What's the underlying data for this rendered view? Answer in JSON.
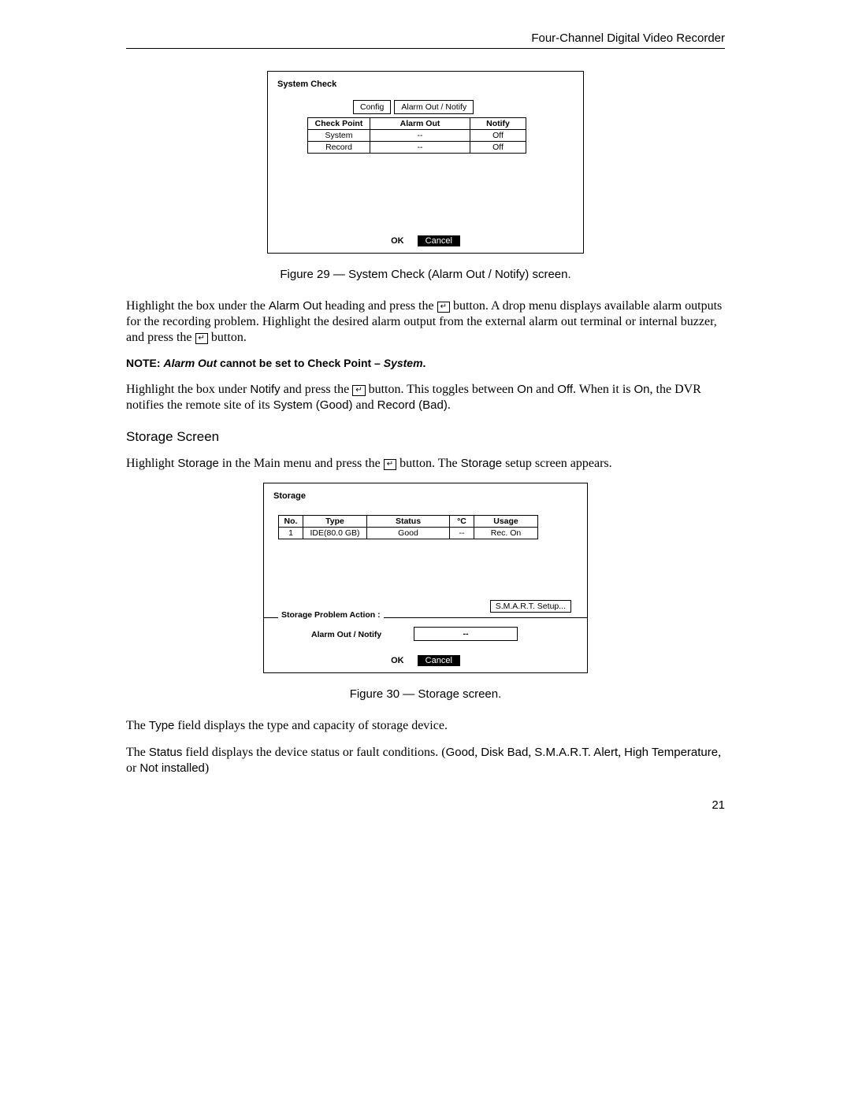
{
  "header": {
    "title": "Four-Channel Digital Video Recorder"
  },
  "systemCheckDialog": {
    "title": "System Check",
    "tabs": {
      "config": "Config",
      "alarm": "Alarm Out / Notify"
    },
    "headers": {
      "checkPoint": "Check Point",
      "alarmOut": "Alarm Out",
      "notify": "Notify"
    },
    "rows": [
      {
        "checkPoint": "System",
        "alarmOut": "--",
        "notify": "Off"
      },
      {
        "checkPoint": "Record",
        "alarmOut": "--",
        "notify": "Off"
      }
    ],
    "ok": "OK",
    "cancel": "Cancel"
  },
  "fig29": "Figure 29 — System Check (Alarm Out / Notify) screen.",
  "para1": {
    "t1": "Highlight the box under the ",
    "s1": "Alarm Out",
    "t2": " heading and press the ",
    "icon": "↵",
    "t3": " button.  A drop menu displays available alarm outputs for the recording problem.  Highlight the desired alarm output from the external alarm out terminal or internal buzzer, and press the ",
    "t4": " button."
  },
  "note": {
    "label": "NOTE:  ",
    "i1": "Alarm Out",
    "t1": " cannot be set to Check Point – ",
    "i2": "System",
    "t2": "."
  },
  "para2": {
    "t1": "Highlight the box under ",
    "s1": "Notify",
    "t2": " and press the ",
    "icon": "↵",
    "t3": " button.  This toggles between ",
    "s2": "On",
    "t4": " and ",
    "s3": "Off",
    "t5": ".  When it is ",
    "s4": "On",
    "t6": ", the DVR notifies the remote site of its ",
    "s5": "System (Good)",
    "t7": " and ",
    "s6": "Record (Bad)",
    "t8": "."
  },
  "storageHeading": "Storage Screen",
  "para3": {
    "t1": "Highlight ",
    "s1": "Storage",
    "t2": " in the Main menu and press the ",
    "icon": "↵",
    "t3": " button.  The ",
    "s2": "Storage",
    "t4": " setup screen appears."
  },
  "storageDialog": {
    "title": "Storage",
    "headers": {
      "no": "No.",
      "type": "Type",
      "status": "Status",
      "temp": "°C",
      "usage": "Usage"
    },
    "rows": [
      {
        "no": "1",
        "type": "IDE(80.0 GB)",
        "status": "Good",
        "temp": "--",
        "usage": "Rec. On"
      }
    ],
    "smart": "S.M.A.R.T. Setup...",
    "spaLabel": "Storage Problem Action :",
    "aonLabel": "Alarm Out / Notify",
    "aonValue": "--",
    "ok": "OK",
    "cancel": "Cancel"
  },
  "fig30": "Figure 30 — Storage screen.",
  "para4": {
    "t1": "The ",
    "s1": "Type",
    "t2": " field displays the type and capacity of storage device."
  },
  "para5": {
    "t1": "The ",
    "s1": "Status",
    "t2": " field displays the device status or fault conditions.  (",
    "s2": "Good",
    "t3": ", ",
    "s3": "Disk Bad",
    "t4": ", ",
    "s4": "S.M.A.R.T. Alert",
    "t5": ", ",
    "s5": "High Temperature",
    "t6": ", or ",
    "s6": "Not installed",
    "t7": ")"
  },
  "pageNumber": "21"
}
